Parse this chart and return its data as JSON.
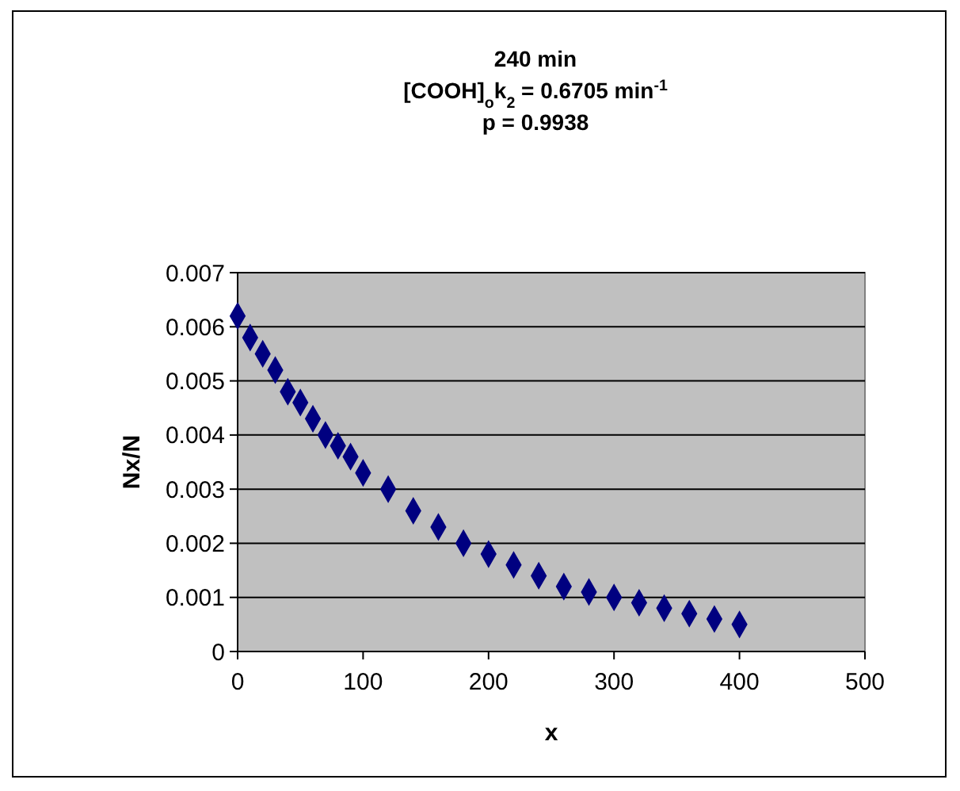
{
  "chart_data": {
    "type": "scatter",
    "title": "240 min\n[COOH]$_{o}$k$_{2}$ = 0.6705 min$^{-1}$\np = 0.9938",
    "xlabel": "x",
    "ylabel": "Nx/N",
    "x": [
      0,
      10,
      20,
      30,
      40,
      50,
      60,
      70,
      80,
      90,
      100,
      120,
      140,
      160,
      180,
      200,
      220,
      240,
      260,
      280,
      300,
      320,
      340,
      360,
      380,
      400
    ],
    "series": [
      {
        "color": "#000080",
        "values": [
          0.0062,
          0.0058,
          0.0055,
          0.0052,
          0.0048,
          0.0046,
          0.0043,
          0.004,
          0.0038,
          0.0036,
          0.0033,
          0.003,
          0.0026,
          0.0023,
          0.002,
          0.0018,
          0.0016,
          0.0014,
          0.0012,
          0.0011,
          0.001,
          0.0009,
          0.0008,
          0.0007,
          0.0006,
          0.0005
        ]
      }
    ],
    "xlim": [
      0,
      500
    ],
    "xticks": [
      0,
      100,
      200,
      300,
      400,
      500
    ],
    "ylim": [
      0,
      0.007
    ],
    "yticks": [
      0,
      0.001,
      0.002,
      0.003,
      0.004,
      0.005,
      0.006,
      0.007
    ],
    "grid": "y",
    "marker": "diamond"
  }
}
